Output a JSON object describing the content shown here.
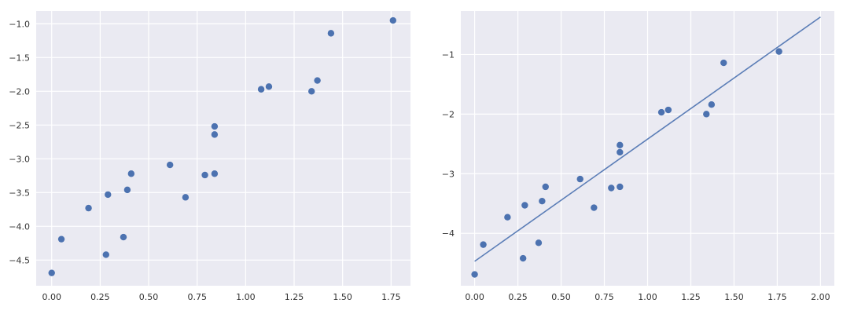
{
  "chart_data": [
    {
      "type": "scatter",
      "title": "",
      "xlabel": "",
      "ylabel": "",
      "xlim": [
        -0.08,
        1.85
      ],
      "ylim": [
        -4.88,
        -0.81
      ],
      "grid": true,
      "xticks": [
        0.0,
        0.25,
        0.5,
        0.75,
        1.0,
        1.25,
        1.5,
        1.75
      ],
      "xtick_labels": [
        "0.00",
        "0.25",
        "0.50",
        "0.75",
        "1.00",
        "1.25",
        "1.50",
        "1.75"
      ],
      "yticks": [
        -1.0,
        -1.5,
        -2.0,
        -2.5,
        -3.0,
        -3.5,
        -4.0,
        -4.5
      ],
      "ytick_labels": [
        "−1.0",
        "−1.5",
        "−2.0",
        "−2.5",
        "−3.0",
        "−3.5",
        "−4.0",
        "−4.5"
      ],
      "series": [
        {
          "x": [
            0.0,
            0.05,
            0.19,
            0.28,
            0.29,
            0.37,
            0.39,
            0.41,
            0.61,
            0.69,
            0.79,
            0.84,
            0.84,
            0.84,
            1.08,
            1.12,
            1.34,
            1.37,
            1.44,
            1.76
          ],
          "y": [
            -4.69,
            -4.19,
            -3.73,
            -4.42,
            -3.53,
            -4.16,
            -3.46,
            -3.22,
            -3.09,
            -3.57,
            -3.24,
            -2.52,
            -2.64,
            -3.22,
            -1.97,
            -1.93,
            -2.0,
            -1.84,
            -1.14,
            -0.95
          ]
        }
      ]
    },
    {
      "type": "scatter",
      "title": "",
      "xlabel": "",
      "ylabel": "",
      "xlim": [
        -0.08,
        2.08
      ],
      "ylim": [
        -4.88,
        -0.27
      ],
      "grid": true,
      "xticks": [
        0.0,
        0.25,
        0.5,
        0.75,
        1.0,
        1.25,
        1.5,
        1.75,
        2.0
      ],
      "xtick_labels": [
        "0.00",
        "0.25",
        "0.50",
        "0.75",
        "1.00",
        "1.25",
        "1.50",
        "1.75",
        "2.00"
      ],
      "yticks": [
        -1,
        -2,
        -3,
        -4
      ],
      "ytick_labels": [
        "−1",
        "−2",
        "−3",
        "−4"
      ],
      "series": [
        {
          "x": [
            0.0,
            0.05,
            0.19,
            0.28,
            0.29,
            0.37,
            0.39,
            0.41,
            0.61,
            0.69,
            0.79,
            0.84,
            0.84,
            0.84,
            1.08,
            1.12,
            1.34,
            1.37,
            1.44,
            1.76
          ],
          "y": [
            -4.69,
            -4.19,
            -3.73,
            -4.42,
            -3.53,
            -4.16,
            -3.46,
            -3.22,
            -3.09,
            -3.57,
            -3.24,
            -2.52,
            -2.64,
            -3.22,
            -1.97,
            -1.93,
            -2.0,
            -1.84,
            -1.14,
            -0.95
          ]
        }
      ],
      "fit_line": {
        "x": [
          0.0,
          2.0
        ],
        "y": [
          -4.47,
          -0.37
        ]
      }
    }
  ]
}
